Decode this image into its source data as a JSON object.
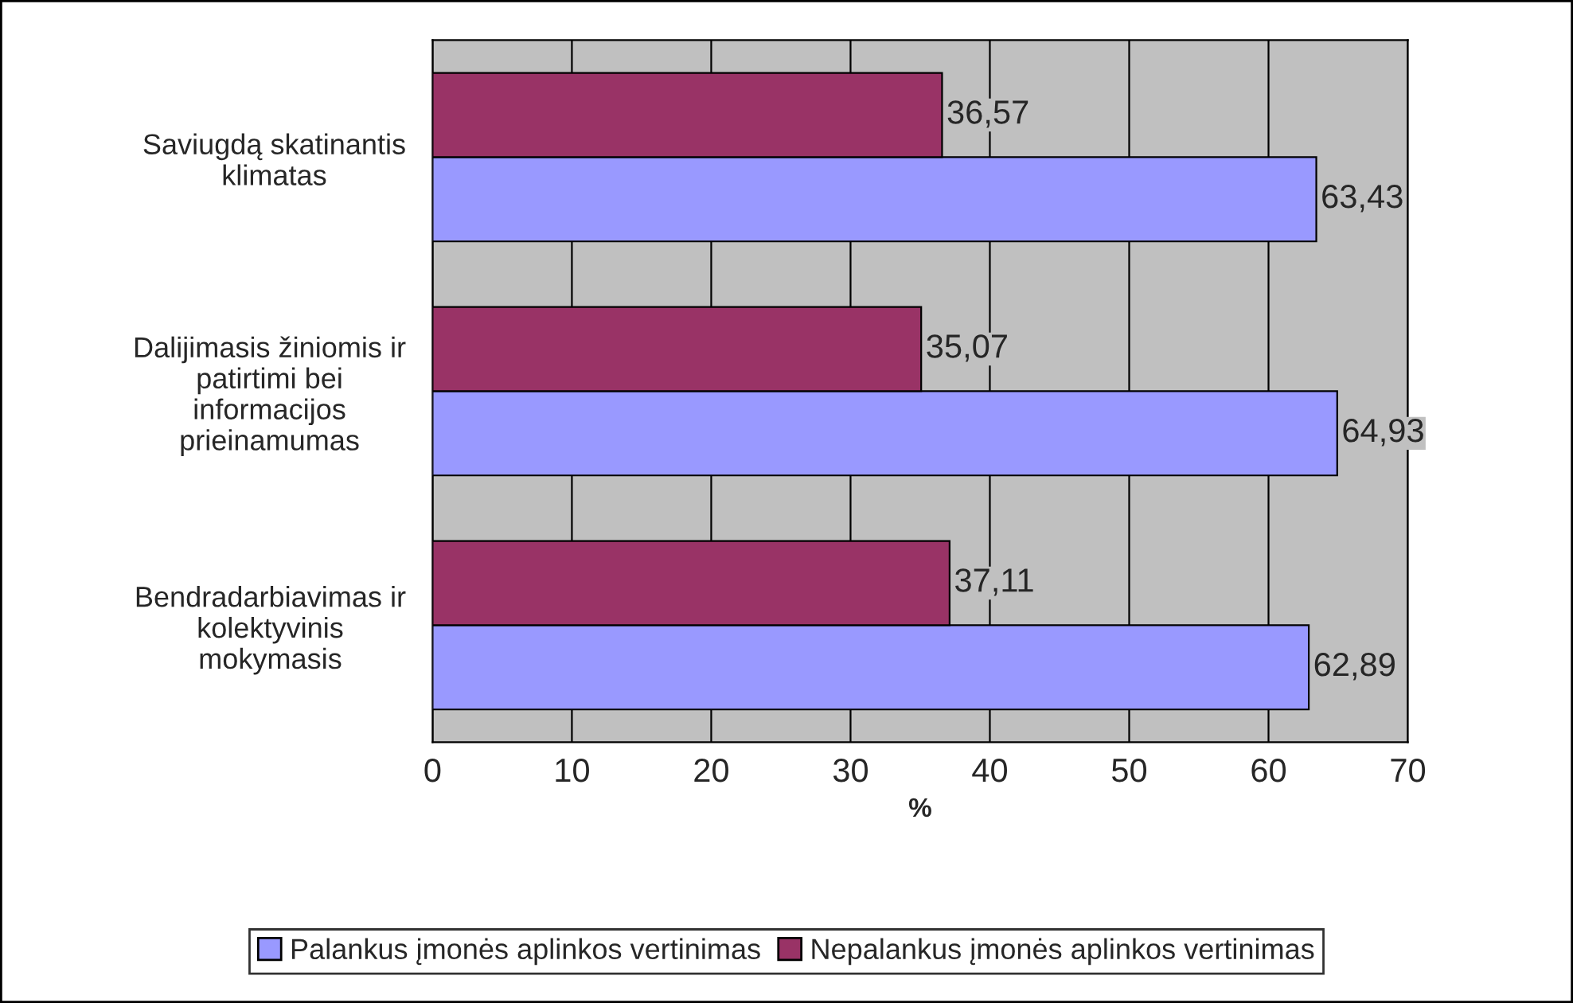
{
  "chart_data": {
    "type": "bar",
    "orientation": "horizontal",
    "categories": [
      "Saviugdą skatinantis\nklimatas",
      "Dalijimasis žiniomis ir\npatirtimi bei\ninformacijos\nprieinamumas",
      "Bendradarbiavimas ir\nkolektyvinis\nmokymasis"
    ],
    "series": [
      {
        "name": "Palankus įmonės aplinkos vertinimas",
        "color": "#9999ff",
        "values": [
          63.43,
          64.93,
          62.89
        ],
        "value_labels": [
          "63,43",
          "64,93",
          "62,89"
        ]
      },
      {
        "name": "Nepalankus įmonės aplinkos vertinimas",
        "color": "#993366",
        "values": [
          36.57,
          35.07,
          37.11
        ],
        "value_labels": [
          "36,57",
          "35,07",
          "37,11"
        ]
      }
    ],
    "xlabel": "%",
    "xlim": [
      0,
      70
    ],
    "xticks": [
      0,
      10,
      20,
      30,
      40,
      50,
      60,
      70
    ],
    "grid": "x",
    "legend": "bottom"
  }
}
